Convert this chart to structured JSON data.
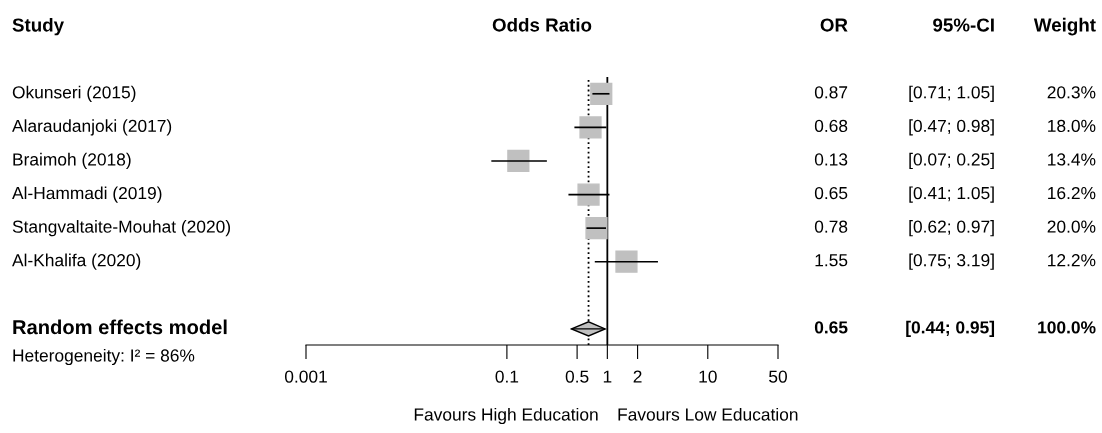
{
  "chart_data": {
    "type": "scatter",
    "orientation": "horizontal",
    "title": "Odds Ratio",
    "categories": [
      "Okunseri (2015)",
      "Alaraudanjoki (2017)",
      "Braimoh (2018)",
      "Al-Hammadi (2019)",
      "Stangvaltaite-Mouhat (2020)",
      "Al-Khalifa (2020)",
      null,
      "Random effects model"
    ],
    "series": [
      {
        "marker": "square",
        "color": "#c0c0c0",
        "values": [
          0.87,
          0.68,
          0.13,
          0.65,
          0.78,
          1.55,
          null,
          null
        ],
        "errors": [
          [
            0.71,
            1.05
          ],
          [
            0.47,
            0.98
          ],
          [
            0.07,
            0.25
          ],
          [
            0.41,
            1.05
          ],
          [
            0.62,
            0.97
          ],
          [
            0.75,
            3.19
          ],
          null,
          null
        ],
        "value_labels": [
          "0.87",
          "0.68",
          "0.13",
          "0.65",
          "0.78",
          "1.55",
          null,
          null
        ]
      },
      {
        "marker": "diamond",
        "color": "#c0c0c0",
        "values": [
          null,
          null,
          null,
          null,
          null,
          null,
          null,
          0.65
        ],
        "errors": [
          null,
          null,
          null,
          null,
          null,
          null,
          null,
          [
            0.44,
            0.95
          ]
        ]
      }
    ],
    "log": "x",
    "xlim": [
      0.001,
      50
    ],
    "xticks": [
      0.001,
      0.1,
      0.5,
      1,
      2,
      10,
      50
    ],
    "grid": false,
    "legend": false,
    "ref_lines": [
      {
        "axis": "x",
        "value": 1,
        "color": "#000000",
        "line_style": "solid"
      },
      {
        "axis": "x",
        "value": 0.65,
        "color": "#000000",
        "line_style": "dotted"
      }
    ],
    "annotations": [
      "Study",
      "OR",
      "95%-CI",
      "Weight",
      "[0.71; 1.05]",
      "20.3%",
      "[0.47; 0.98]",
      "18.0%",
      "[0.07; 0.25]",
      "13.4%",
      "[0.41; 1.05]",
      "16.2%",
      "[0.62; 0.97]",
      "20.0%",
      "[0.75; 3.19]",
      "12.2%",
      "0.65",
      "[0.44; 0.95]",
      "100.0%",
      "Heterogeneity: I² = 86%",
      "Favours High Education",
      "Favours Low Education"
    ]
  }
}
